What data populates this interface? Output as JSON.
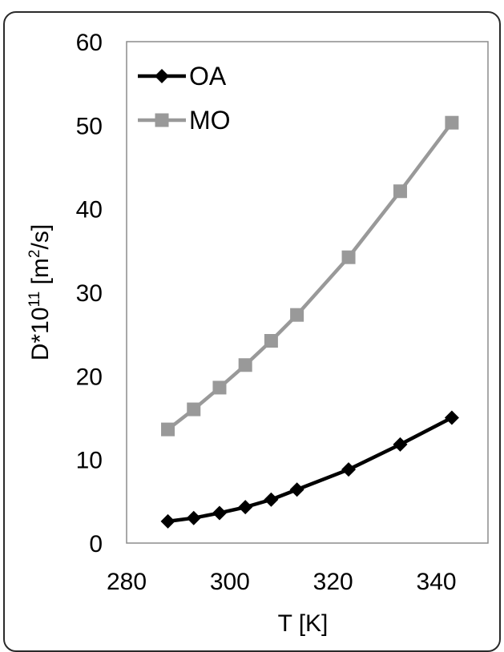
{
  "chart_data": {
    "type": "line",
    "xlabel": "T [K]",
    "ylabel_main": "D*10",
    "ylabel_exp": "11",
    "ylabel_unit_open": " [m",
    "ylabel_unit_exp": "2",
    "ylabel_unit_close": "/s]",
    "xlim": [
      280,
      350
    ],
    "ylim": [
      0,
      60
    ],
    "xticks": [
      280,
      300,
      320,
      340
    ],
    "yticks": [
      0,
      10,
      20,
      30,
      40,
      50,
      60
    ],
    "grid": false,
    "legend_position": "top-left",
    "series": [
      {
        "name": "OA",
        "color": "#000000",
        "marker": "diamond",
        "x": [
          288,
          293,
          298,
          303,
          308,
          313,
          323,
          333,
          343
        ],
        "y": [
          2.6,
          3.0,
          3.6,
          4.3,
          5.2,
          6.4,
          8.8,
          11.8,
          15.0
        ]
      },
      {
        "name": "MO",
        "color": "#999999",
        "marker": "square",
        "x": [
          288,
          293,
          298,
          303,
          308,
          313,
          323,
          333,
          343
        ],
        "y": [
          13.6,
          16.0,
          18.6,
          21.3,
          24.2,
          27.3,
          34.2,
          42.1,
          50.3
        ]
      }
    ]
  }
}
